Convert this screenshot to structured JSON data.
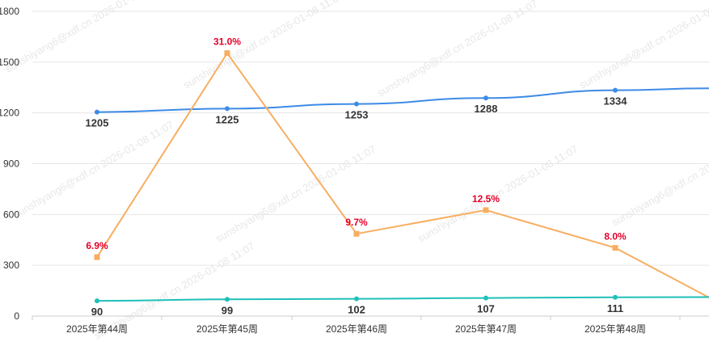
{
  "chart_data": {
    "type": "line",
    "title": "",
    "xlabel": "",
    "ylabel": "",
    "ylim": [
      0,
      1800
    ],
    "yticks": [
      0,
      300,
      600,
      900,
      1200,
      1500,
      1800
    ],
    "grid": true,
    "categories": [
      "2025年第44周",
      "2025年第45周",
      "2025年第46周",
      "2025年第47周",
      "2025年第48周",
      ""
    ],
    "series": [
      {
        "color": "#3d8be6",
        "marker": "circle",
        "values": [
          1205,
          1225,
          1253,
          1288,
          1334,
          1345
        ],
        "labels": [
          "1205",
          "1225",
          "1253",
          "1288",
          "1334",
          ""
        ],
        "label_position": "below",
        "label_color": "#333333"
      },
      {
        "color": "#f7ae61",
        "marker": "square",
        "values": [
          348,
          1553,
          486,
          626,
          403,
          110
        ],
        "labels": [
          "6.9%",
          "31.0%",
          "9.7%",
          "12.5%",
          "8.0%",
          ""
        ],
        "label_position": "above",
        "label_color": "#e4002b"
      },
      {
        "color": "#1fc0b8",
        "marker": "circle",
        "values": [
          90,
          99,
          102,
          107,
          111,
          112
        ],
        "labels": [
          "90",
          "99",
          "102",
          "107",
          "111",
          ""
        ],
        "label_position": "below",
        "label_color": "#333333"
      }
    ],
    "watermark": "sunshiyang6@xdf.cn 2026-01-08 11:07"
  }
}
